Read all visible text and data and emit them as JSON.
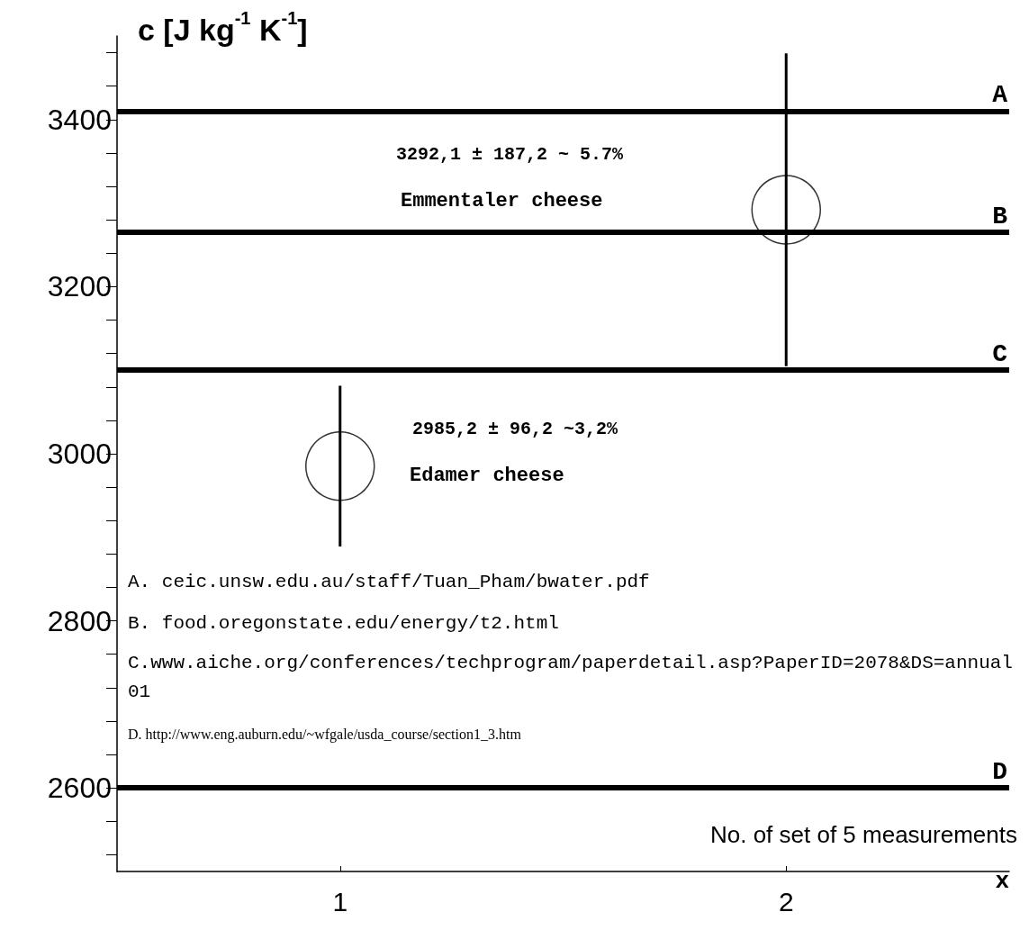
{
  "chart_data": {
    "type": "scatter",
    "ylabel": "c [J kg$^{-1}$ K$^{-1}$]",
    "xlabel": "x",
    "x": [
      1,
      2
    ],
    "series": [
      {
        "color": "#000000",
        "values": [
          2985.2,
          3292.1
        ],
        "errors": [
          96.2,
          187.2
        ]
      }
    ],
    "marker": "circle",
    "xlim": [
      0.5,
      2.5
    ],
    "xticks": [
      1,
      2
    ],
    "ylim": [
      2500,
      3500
    ],
    "yticks": [
      {
        "value": 2520,
        "label": null
      },
      {
        "value": 2560,
        "label": null
      },
      2600,
      {
        "value": 2640,
        "label": null
      },
      {
        "value": 2680,
        "label": null
      },
      {
        "value": 2720,
        "label": null
      },
      {
        "value": 2760,
        "label": null
      },
      2800,
      {
        "value": 2840,
        "label": null
      },
      {
        "value": 2880,
        "label": null
      },
      {
        "value": 2920,
        "label": null
      },
      {
        "value": 2960,
        "label": null
      },
      3000,
      {
        "value": 3040,
        "label": null
      },
      {
        "value": 3080,
        "label": null
      },
      {
        "value": 3120,
        "label": null
      },
      {
        "value": 3160,
        "label": null
      },
      3200,
      {
        "value": 3240,
        "label": null
      },
      {
        "value": 3280,
        "label": null
      },
      {
        "value": 3320,
        "label": null
      },
      {
        "value": 3360,
        "label": null
      },
      3400,
      {
        "value": 3440,
        "label": null
      },
      {
        "value": 3480,
        "label": null
      }
    ],
    "ref_lines": [
      {
        "axis": "y",
        "value": 3410,
        "label": "A",
        "color": "#000000"
      },
      {
        "axis": "y",
        "value": 3265,
        "label": "B",
        "color": "#000000"
      },
      {
        "axis": "y",
        "value": 3100,
        "label": "C",
        "color": "#000000"
      },
      {
        "axis": "y",
        "value": 2600,
        "label": "D",
        "color": "#000000"
      }
    ],
    "annotations": [
      "3292,1 ± 187,2 ~ 5.7%",
      "Emmentaler cheese",
      "2985,2 ± 96,2 ~3,2%",
      "Edamer cheese",
      "A. ceic.unsw.edu.au/staff/Tuan_Pham/bwater.pdf",
      "B. food.oregonstate.edu/energy/t2.html",
      "C.www.aiche.org/conferences/techprogram/paperdetail.asp?PaperID=2078&DS=annual01",
      "D. http://www.eng.auburn.edu/~wfgale/usda_course/section1_3.htm",
      "No. of set of 5 measurements"
    ]
  }
}
